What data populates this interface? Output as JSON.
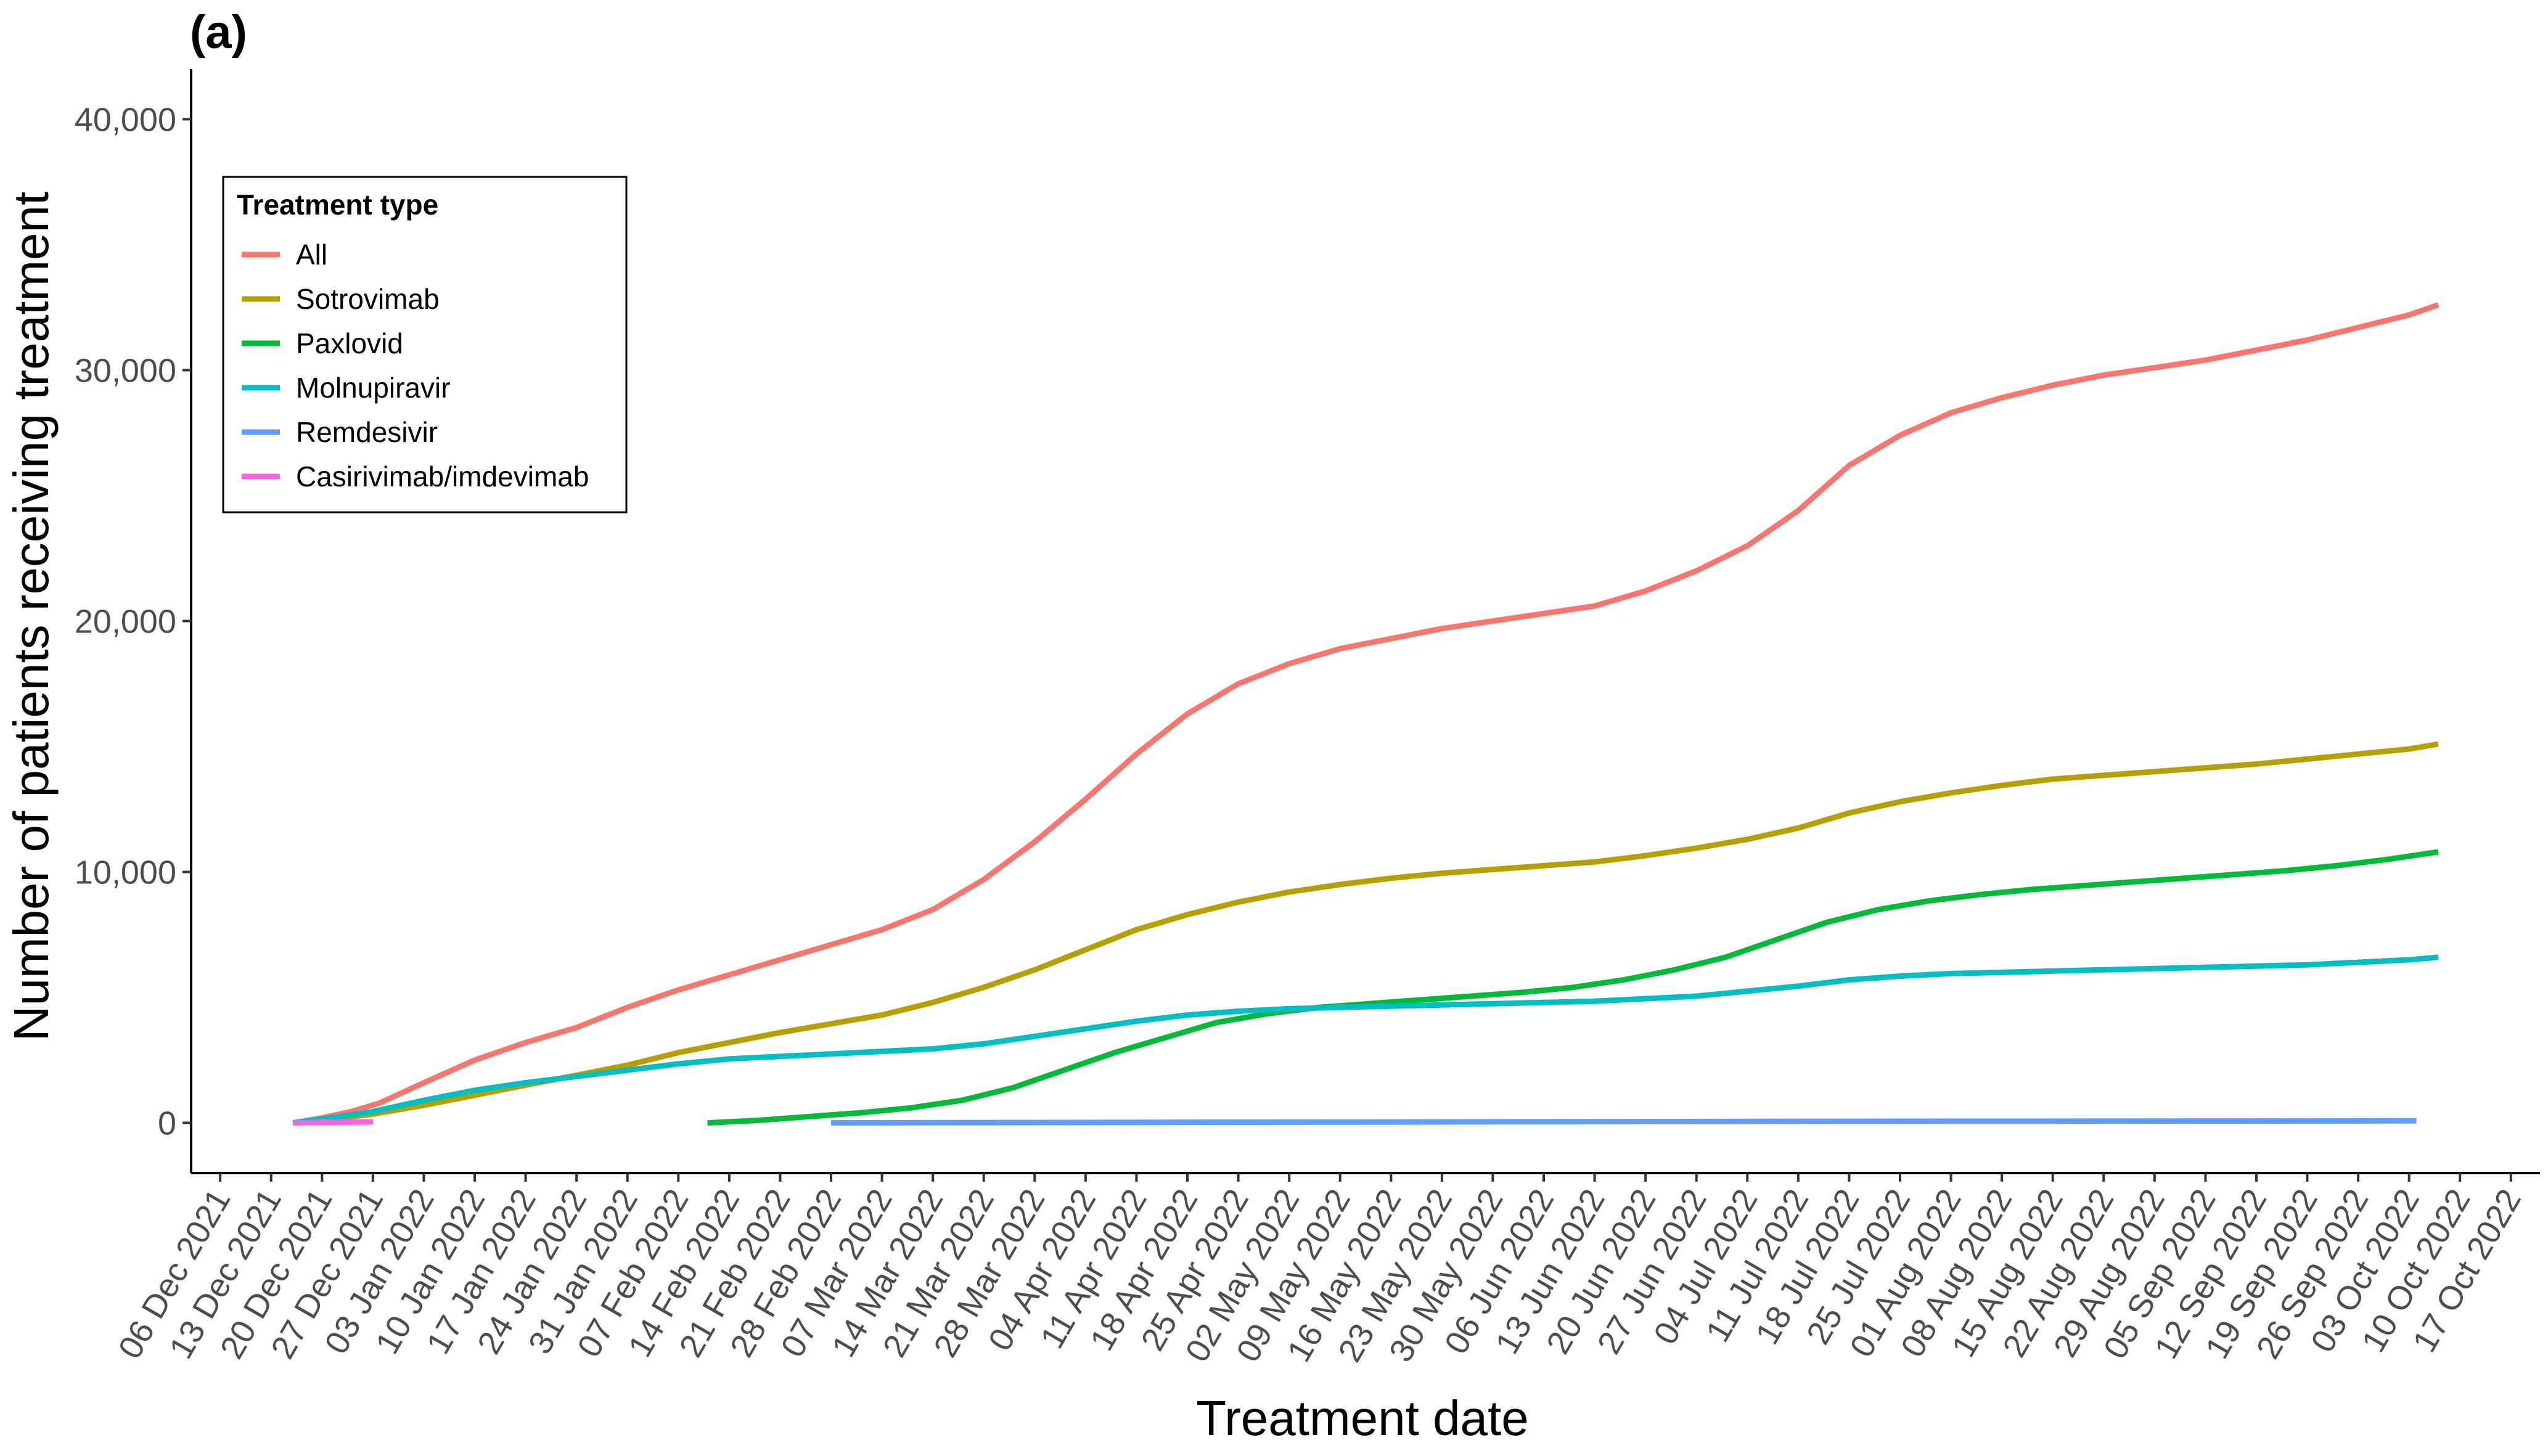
{
  "chart_data": {
    "type": "line",
    "panel_label": "(a)",
    "xlabel": "Treatment date",
    "ylabel": "Number of patients receiving treatment",
    "xlim": [
      "2021-12-02",
      "2022-10-21"
    ],
    "ylim": [
      -2000,
      42000
    ],
    "x_tick_labels": [
      "06 Dec 2021",
      "13 Dec 2021",
      "20 Dec 2021",
      "27 Dec 2021",
      "03 Jan 2022",
      "10 Jan 2022",
      "17 Jan 2022",
      "24 Jan 2022",
      "31 Jan 2022",
      "07 Feb 2022",
      "14 Feb 2022",
      "21 Feb 2022",
      "28 Feb 2022",
      "07 Mar 2022",
      "14 Mar 2022",
      "21 Mar 2022",
      "28 Mar 2022",
      "04 Apr 2022",
      "11 Apr 2022",
      "18 Apr 2022",
      "25 Apr 2022",
      "02 May 2022",
      "09 May 2022",
      "16 May 2022",
      "23 May 2022",
      "30 May 2022",
      "06 Jun 2022",
      "13 Jun 2022",
      "20 Jun 2022",
      "27 Jun 2022",
      "04 Jul 2022",
      "11 Jul 2022",
      "18 Jul 2022",
      "25 Jul 2022",
      "01 Aug 2022",
      "08 Aug 2022",
      "15 Aug 2022",
      "22 Aug 2022",
      "29 Aug 2022",
      "05 Sep 2022",
      "12 Sep 2022",
      "19 Sep 2022",
      "26 Sep 2022",
      "03 Oct 2022",
      "10 Oct 2022",
      "17 Oct 2022"
    ],
    "y_ticks": [
      0,
      10000,
      20000,
      30000,
      40000
    ],
    "y_tick_labels": [
      "0",
      "10,000",
      "20,000",
      "30,000",
      "40,000"
    ],
    "grid": false,
    "legend": {
      "title": "Treatment type",
      "position": "top-left"
    },
    "series": [
      {
        "name": "All",
        "color": "#F8766D",
        "points": [
          [
            "2021-12-16",
            0
          ],
          [
            "2021-12-20",
            200
          ],
          [
            "2021-12-24",
            450
          ],
          [
            "2021-12-28",
            800
          ],
          [
            "2022-01-03",
            1600
          ],
          [
            "2022-01-10",
            2500
          ],
          [
            "2022-01-17",
            3200
          ],
          [
            "2022-01-24",
            3800
          ],
          [
            "2022-01-31",
            4600
          ],
          [
            "2022-02-07",
            5300
          ],
          [
            "2022-02-14",
            5900
          ],
          [
            "2022-02-21",
            6500
          ],
          [
            "2022-02-28",
            7100
          ],
          [
            "2022-03-07",
            7700
          ],
          [
            "2022-03-14",
            8500
          ],
          [
            "2022-03-21",
            9700
          ],
          [
            "2022-03-28",
            11200
          ],
          [
            "2022-04-04",
            12900
          ],
          [
            "2022-04-11",
            14700
          ],
          [
            "2022-04-18",
            16300
          ],
          [
            "2022-04-25",
            17500
          ],
          [
            "2022-05-02",
            18300
          ],
          [
            "2022-05-09",
            18900
          ],
          [
            "2022-05-16",
            19300
          ],
          [
            "2022-05-23",
            19700
          ],
          [
            "2022-05-30",
            20000
          ],
          [
            "2022-06-06",
            20300
          ],
          [
            "2022-06-13",
            20600
          ],
          [
            "2022-06-20",
            21200
          ],
          [
            "2022-06-27",
            22000
          ],
          [
            "2022-07-04",
            23000
          ],
          [
            "2022-07-11",
            24400
          ],
          [
            "2022-07-18",
            26200
          ],
          [
            "2022-07-25",
            27400
          ],
          [
            "2022-08-01",
            28300
          ],
          [
            "2022-08-08",
            28900
          ],
          [
            "2022-08-15",
            29400
          ],
          [
            "2022-08-22",
            29800
          ],
          [
            "2022-08-29",
            30100
          ],
          [
            "2022-09-05",
            30400
          ],
          [
            "2022-09-12",
            30800
          ],
          [
            "2022-09-19",
            31200
          ],
          [
            "2022-09-26",
            31700
          ],
          [
            "2022-10-03",
            32200
          ],
          [
            "2022-10-07",
            32600
          ]
        ]
      },
      {
        "name": "Sotrovimab",
        "color": "#B79F00",
        "points": [
          [
            "2021-12-16",
            0
          ],
          [
            "2021-12-20",
            100
          ],
          [
            "2021-12-27",
            350
          ],
          [
            "2022-01-03",
            700
          ],
          [
            "2022-01-10",
            1100
          ],
          [
            "2022-01-17",
            1500
          ],
          [
            "2022-01-24",
            1900
          ],
          [
            "2022-01-31",
            2300
          ],
          [
            "2022-02-07",
            2800
          ],
          [
            "2022-02-14",
            3200
          ],
          [
            "2022-02-21",
            3600
          ],
          [
            "2022-02-28",
            3950
          ],
          [
            "2022-03-07",
            4300
          ],
          [
            "2022-03-14",
            4800
          ],
          [
            "2022-03-21",
            5400
          ],
          [
            "2022-03-28",
            6100
          ],
          [
            "2022-04-04",
            6900
          ],
          [
            "2022-04-11",
            7700
          ],
          [
            "2022-04-18",
            8300
          ],
          [
            "2022-04-25",
            8800
          ],
          [
            "2022-05-02",
            9200
          ],
          [
            "2022-05-09",
            9500
          ],
          [
            "2022-05-16",
            9750
          ],
          [
            "2022-05-23",
            9950
          ],
          [
            "2022-05-30",
            10100
          ],
          [
            "2022-06-06",
            10250
          ],
          [
            "2022-06-13",
            10400
          ],
          [
            "2022-06-20",
            10650
          ],
          [
            "2022-06-27",
            10950
          ],
          [
            "2022-07-04",
            11300
          ],
          [
            "2022-07-11",
            11750
          ],
          [
            "2022-07-18",
            12350
          ],
          [
            "2022-07-25",
            12800
          ],
          [
            "2022-08-01",
            13150
          ],
          [
            "2022-08-08",
            13450
          ],
          [
            "2022-08-15",
            13700
          ],
          [
            "2022-08-22",
            13850
          ],
          [
            "2022-08-29",
            14000
          ],
          [
            "2022-09-05",
            14150
          ],
          [
            "2022-09-12",
            14300
          ],
          [
            "2022-09-19",
            14500
          ],
          [
            "2022-09-26",
            14700
          ],
          [
            "2022-10-03",
            14900
          ],
          [
            "2022-10-07",
            15100
          ]
        ]
      },
      {
        "name": "Paxlovid",
        "color": "#00BA38",
        "points": [
          [
            "2022-02-11",
            0
          ],
          [
            "2022-02-18",
            100
          ],
          [
            "2022-02-25",
            250
          ],
          [
            "2022-03-04",
            400
          ],
          [
            "2022-03-11",
            600
          ],
          [
            "2022-03-18",
            900
          ],
          [
            "2022-03-25",
            1400
          ],
          [
            "2022-04-01",
            2100
          ],
          [
            "2022-04-08",
            2800
          ],
          [
            "2022-04-15",
            3400
          ],
          [
            "2022-04-22",
            4000
          ],
          [
            "2022-04-29",
            4350
          ],
          [
            "2022-05-06",
            4600
          ],
          [
            "2022-05-13",
            4750
          ],
          [
            "2022-05-20",
            4900
          ],
          [
            "2022-05-27",
            5050
          ],
          [
            "2022-06-03",
            5200
          ],
          [
            "2022-06-10",
            5400
          ],
          [
            "2022-06-17",
            5700
          ],
          [
            "2022-06-24",
            6100
          ],
          [
            "2022-07-01",
            6600
          ],
          [
            "2022-07-08",
            7300
          ],
          [
            "2022-07-15",
            8000
          ],
          [
            "2022-07-22",
            8500
          ],
          [
            "2022-07-29",
            8850
          ],
          [
            "2022-08-05",
            9100
          ],
          [
            "2022-08-12",
            9300
          ],
          [
            "2022-08-19",
            9450
          ],
          [
            "2022-08-26",
            9600
          ],
          [
            "2022-09-02",
            9750
          ],
          [
            "2022-09-09",
            9900
          ],
          [
            "2022-09-16",
            10050
          ],
          [
            "2022-09-23",
            10250
          ],
          [
            "2022-09-30",
            10500
          ],
          [
            "2022-10-07",
            10800
          ]
        ]
      },
      {
        "name": "Molnupiravir",
        "color": "#00BFC4",
        "points": [
          [
            "2021-12-16",
            0
          ],
          [
            "2021-12-20",
            150
          ],
          [
            "2021-12-27",
            450
          ],
          [
            "2022-01-03",
            900
          ],
          [
            "2022-01-10",
            1300
          ],
          [
            "2022-01-17",
            1600
          ],
          [
            "2022-01-24",
            1850
          ],
          [
            "2022-01-31",
            2100
          ],
          [
            "2022-02-07",
            2350
          ],
          [
            "2022-02-14",
            2550
          ],
          [
            "2022-02-21",
            2650
          ],
          [
            "2022-02-28",
            2750
          ],
          [
            "2022-03-07",
            2850
          ],
          [
            "2022-03-14",
            2950
          ],
          [
            "2022-03-21",
            3150
          ],
          [
            "2022-03-28",
            3450
          ],
          [
            "2022-04-04",
            3750
          ],
          [
            "2022-04-11",
            4050
          ],
          [
            "2022-04-18",
            4300
          ],
          [
            "2022-04-25",
            4450
          ],
          [
            "2022-05-02",
            4550
          ],
          [
            "2022-05-09",
            4600
          ],
          [
            "2022-05-16",
            4650
          ],
          [
            "2022-05-23",
            4700
          ],
          [
            "2022-05-30",
            4750
          ],
          [
            "2022-06-06",
            4800
          ],
          [
            "2022-06-13",
            4850
          ],
          [
            "2022-06-20",
            4950
          ],
          [
            "2022-06-27",
            5050
          ],
          [
            "2022-07-04",
            5250
          ],
          [
            "2022-07-11",
            5450
          ],
          [
            "2022-07-18",
            5700
          ],
          [
            "2022-07-25",
            5850
          ],
          [
            "2022-08-01",
            5950
          ],
          [
            "2022-08-08",
            6000
          ],
          [
            "2022-08-15",
            6050
          ],
          [
            "2022-08-22",
            6100
          ],
          [
            "2022-08-29",
            6150
          ],
          [
            "2022-09-05",
            6200
          ],
          [
            "2022-09-12",
            6250
          ],
          [
            "2022-09-19",
            6300
          ],
          [
            "2022-09-26",
            6400
          ],
          [
            "2022-10-03",
            6500
          ],
          [
            "2022-10-07",
            6600
          ]
        ]
      },
      {
        "name": "Remdesivir",
        "color": "#619CFF",
        "points": [
          [
            "2022-02-28",
            0
          ],
          [
            "2022-05-01",
            30
          ],
          [
            "2022-07-15",
            60
          ],
          [
            "2022-10-04",
            80
          ]
        ]
      },
      {
        "name": "Casirivimab/imdevimab",
        "color": "#F564E3",
        "points": [
          [
            "2021-12-16",
            0
          ],
          [
            "2021-12-20",
            20
          ],
          [
            "2021-12-27",
            40
          ]
        ]
      }
    ]
  }
}
